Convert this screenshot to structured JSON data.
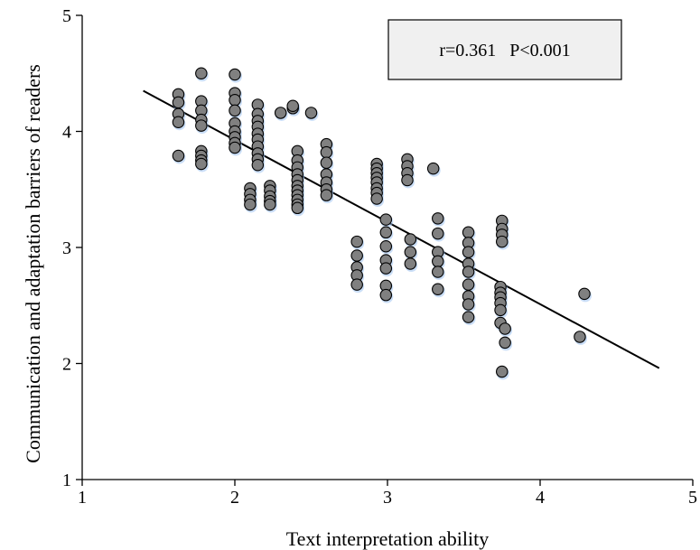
{
  "chart_data": {
    "type": "scatter",
    "title": "",
    "xlabel": "Text interpretation ability",
    "ylabel": "Communication and adaptation barriers of readers",
    "xlim": [
      1,
      5
    ],
    "ylim": [
      1,
      5
    ],
    "xticks": [
      "1",
      "2",
      "3",
      "4",
      "5"
    ],
    "yticks": [
      "1",
      "2",
      "3",
      "4",
      "5"
    ],
    "grid": false,
    "legend": "none",
    "annotation": {
      "text": "r=0.361   P<0.001",
      "position": "top-right"
    },
    "marker_color": "#808080",
    "marker_edge_color": "#000000",
    "regression_line": {
      "x": [
        1.4,
        4.78
      ],
      "y": [
        4.35,
        1.96
      ]
    },
    "points": [
      {
        "x": 1.63,
        "y": 4.32
      },
      {
        "x": 1.63,
        "y": 4.25
      },
      {
        "x": 1.63,
        "y": 4.15
      },
      {
        "x": 1.63,
        "y": 4.08
      },
      {
        "x": 1.63,
        "y": 3.79
      },
      {
        "x": 1.78,
        "y": 4.5
      },
      {
        "x": 1.78,
        "y": 4.26
      },
      {
        "x": 1.78,
        "y": 4.18
      },
      {
        "x": 1.78,
        "y": 4.1
      },
      {
        "x": 1.78,
        "y": 4.05
      },
      {
        "x": 1.78,
        "y": 3.83
      },
      {
        "x": 1.78,
        "y": 3.79
      },
      {
        "x": 1.78,
        "y": 3.75
      },
      {
        "x": 1.78,
        "y": 3.72
      },
      {
        "x": 2.0,
        "y": 4.49
      },
      {
        "x": 2.0,
        "y": 4.33
      },
      {
        "x": 2.0,
        "y": 4.27
      },
      {
        "x": 2.0,
        "y": 4.18
      },
      {
        "x": 2.0,
        "y": 4.07
      },
      {
        "x": 2.0,
        "y": 4.0
      },
      {
        "x": 2.0,
        "y": 3.95
      },
      {
        "x": 2.0,
        "y": 3.9
      },
      {
        "x": 2.0,
        "y": 3.86
      },
      {
        "x": 2.1,
        "y": 3.51
      },
      {
        "x": 2.1,
        "y": 3.46
      },
      {
        "x": 2.1,
        "y": 3.41
      },
      {
        "x": 2.1,
        "y": 3.37
      },
      {
        "x": 2.15,
        "y": 4.23
      },
      {
        "x": 2.15,
        "y": 4.15
      },
      {
        "x": 2.15,
        "y": 4.09
      },
      {
        "x": 2.15,
        "y": 4.04
      },
      {
        "x": 2.15,
        "y": 3.98
      },
      {
        "x": 2.15,
        "y": 3.93
      },
      {
        "x": 2.15,
        "y": 3.87
      },
      {
        "x": 2.15,
        "y": 3.81
      },
      {
        "x": 2.15,
        "y": 3.76
      },
      {
        "x": 2.15,
        "y": 3.71
      },
      {
        "x": 2.23,
        "y": 3.53
      },
      {
        "x": 2.23,
        "y": 3.49
      },
      {
        "x": 2.23,
        "y": 3.44
      },
      {
        "x": 2.23,
        "y": 3.4
      },
      {
        "x": 2.23,
        "y": 3.37
      },
      {
        "x": 2.3,
        "y": 4.16
      },
      {
        "x": 2.38,
        "y": 4.2
      },
      {
        "x": 2.38,
        "y": 4.22
      },
      {
        "x": 2.5,
        "y": 4.16
      },
      {
        "x": 2.41,
        "y": 3.83
      },
      {
        "x": 2.41,
        "y": 3.75
      },
      {
        "x": 2.41,
        "y": 3.69
      },
      {
        "x": 2.41,
        "y": 3.63
      },
      {
        "x": 2.41,
        "y": 3.58
      },
      {
        "x": 2.41,
        "y": 3.53
      },
      {
        "x": 2.41,
        "y": 3.49
      },
      {
        "x": 2.41,
        "y": 3.45
      },
      {
        "x": 2.41,
        "y": 3.41
      },
      {
        "x": 2.41,
        "y": 3.37
      },
      {
        "x": 2.41,
        "y": 3.34
      },
      {
        "x": 2.6,
        "y": 3.89
      },
      {
        "x": 2.6,
        "y": 3.82
      },
      {
        "x": 2.6,
        "y": 3.73
      },
      {
        "x": 2.6,
        "y": 3.63
      },
      {
        "x": 2.6,
        "y": 3.56
      },
      {
        "x": 2.6,
        "y": 3.5
      },
      {
        "x": 2.6,
        "y": 3.45
      },
      {
        "x": 2.8,
        "y": 3.05
      },
      {
        "x": 2.8,
        "y": 2.93
      },
      {
        "x": 2.8,
        "y": 2.83
      },
      {
        "x": 2.8,
        "y": 2.76
      },
      {
        "x": 2.8,
        "y": 2.68
      },
      {
        "x": 2.93,
        "y": 3.72
      },
      {
        "x": 2.93,
        "y": 3.68
      },
      {
        "x": 2.93,
        "y": 3.64
      },
      {
        "x": 2.93,
        "y": 3.6
      },
      {
        "x": 2.93,
        "y": 3.56
      },
      {
        "x": 2.93,
        "y": 3.51
      },
      {
        "x": 2.93,
        "y": 3.47
      },
      {
        "x": 2.93,
        "y": 3.42
      },
      {
        "x": 2.99,
        "y": 3.24
      },
      {
        "x": 2.99,
        "y": 3.13
      },
      {
        "x": 2.99,
        "y": 3.01
      },
      {
        "x": 2.99,
        "y": 2.89
      },
      {
        "x": 2.99,
        "y": 2.82
      },
      {
        "x": 2.99,
        "y": 2.67
      },
      {
        "x": 2.99,
        "y": 2.59
      },
      {
        "x": 3.13,
        "y": 3.76
      },
      {
        "x": 3.13,
        "y": 3.7
      },
      {
        "x": 3.13,
        "y": 3.64
      },
      {
        "x": 3.13,
        "y": 3.58
      },
      {
        "x": 3.15,
        "y": 3.07
      },
      {
        "x": 3.15,
        "y": 2.96
      },
      {
        "x": 3.15,
        "y": 2.86
      },
      {
        "x": 3.3,
        "y": 3.68
      },
      {
        "x": 3.33,
        "y": 3.25
      },
      {
        "x": 3.33,
        "y": 3.12
      },
      {
        "x": 3.33,
        "y": 2.96
      },
      {
        "x": 3.33,
        "y": 2.88
      },
      {
        "x": 3.33,
        "y": 2.79
      },
      {
        "x": 3.33,
        "y": 2.64
      },
      {
        "x": 3.53,
        "y": 3.13
      },
      {
        "x": 3.53,
        "y": 3.04
      },
      {
        "x": 3.53,
        "y": 2.96
      },
      {
        "x": 3.53,
        "y": 2.86
      },
      {
        "x": 3.53,
        "y": 2.79
      },
      {
        "x": 3.53,
        "y": 2.68
      },
      {
        "x": 3.53,
        "y": 2.58
      },
      {
        "x": 3.53,
        "y": 2.51
      },
      {
        "x": 3.53,
        "y": 2.4
      },
      {
        "x": 3.75,
        "y": 3.23
      },
      {
        "x": 3.75,
        "y": 3.16
      },
      {
        "x": 3.75,
        "y": 3.11
      },
      {
        "x": 3.75,
        "y": 3.05
      },
      {
        "x": 3.74,
        "y": 2.66
      },
      {
        "x": 3.74,
        "y": 2.61
      },
      {
        "x": 3.74,
        "y": 2.57
      },
      {
        "x": 3.74,
        "y": 2.52
      },
      {
        "x": 3.74,
        "y": 2.46
      },
      {
        "x": 3.74,
        "y": 2.35
      },
      {
        "x": 3.77,
        "y": 2.3
      },
      {
        "x": 3.77,
        "y": 2.18
      },
      {
        "x": 3.75,
        "y": 1.93
      },
      {
        "x": 4.26,
        "y": 2.23
      },
      {
        "x": 4.29,
        "y": 2.6
      }
    ]
  }
}
